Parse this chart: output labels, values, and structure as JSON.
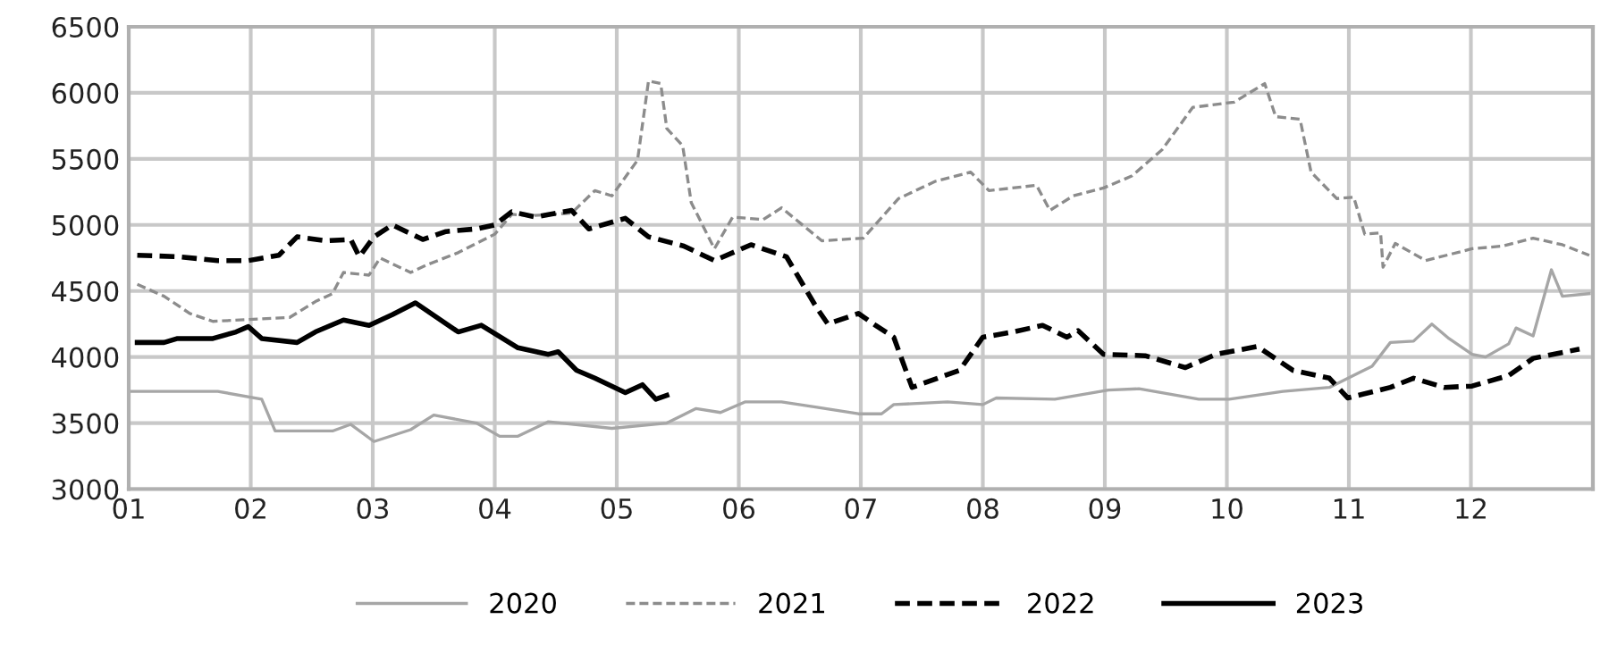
{
  "chart_data": {
    "type": "line",
    "xlim": [
      1,
      13
    ],
    "ylim": [
      3000,
      6500
    ],
    "xticks": [
      {
        "value": 1,
        "label": "01"
      },
      {
        "value": 2,
        "label": "02"
      },
      {
        "value": 3,
        "label": "03"
      },
      {
        "value": 4,
        "label": "04"
      },
      {
        "value": 5,
        "label": "05"
      },
      {
        "value": 6,
        "label": "06"
      },
      {
        "value": 7,
        "label": "07"
      },
      {
        "value": 8,
        "label": "08"
      },
      {
        "value": 9,
        "label": "09"
      },
      {
        "value": 10,
        "label": "10"
      },
      {
        "value": 11,
        "label": "11"
      },
      {
        "value": 12,
        "label": "12"
      },
      {
        "value": 13,
        "label": null
      }
    ],
    "yticks": [
      3000,
      3500,
      4000,
      4500,
      5000,
      5500,
      6000,
      6500
    ],
    "grid": true,
    "legend": "bottom",
    "marker": "none",
    "series": [
      {
        "name": "2020",
        "color": "#a6a6a6",
        "line_style": "solid",
        "x": [
          1.0,
          1.73,
          2.09,
          2.2,
          2.67,
          2.82,
          3.01,
          3.31,
          3.5,
          3.85,
          4.04,
          4.19,
          4.44,
          4.96,
          5.41,
          5.65,
          5.85,
          6.05,
          6.35,
          6.64,
          6.98,
          7.17,
          7.27,
          7.71,
          8.0,
          8.11,
          8.59,
          9.03,
          9.28,
          9.77,
          10.02,
          10.46,
          10.84,
          11.19,
          11.34,
          11.53,
          11.68,
          11.82,
          12.01,
          12.12,
          12.31,
          12.37,
          12.51,
          12.66,
          12.75,
          12.97
        ],
        "values": [
          3740,
          3740,
          3680,
          3440,
          3440,
          3490,
          3360,
          3450,
          3560,
          3500,
          3400,
          3400,
          3510,
          3460,
          3500,
          3610,
          3580,
          3660,
          3660,
          3620,
          3570,
          3570,
          3640,
          3660,
          3640,
          3690,
          3680,
          3750,
          3760,
          3680,
          3680,
          3740,
          3770,
          3930,
          4110,
          4120,
          4250,
          4140,
          4020,
          4000,
          4100,
          4220,
          4160,
          4660,
          4460,
          4480
        ]
      },
      {
        "name": "2021",
        "color": "#8c8c8c",
        "line_style": "dashed",
        "x": [
          1.07,
          1.29,
          1.5,
          1.69,
          2.32,
          2.53,
          2.67,
          2.76,
          2.97,
          3.06,
          3.31,
          3.45,
          3.7,
          4.0,
          4.14,
          4.3,
          4.63,
          4.82,
          4.96,
          5.17,
          5.26,
          5.36,
          5.41,
          5.54,
          5.61,
          5.8,
          5.95,
          6.2,
          6.35,
          6.68,
          7.02,
          7.31,
          7.61,
          7.9,
          8.05,
          8.44,
          8.55,
          8.74,
          8.99,
          9.22,
          9.47,
          9.72,
          10.06,
          10.31,
          10.4,
          10.6,
          10.69,
          10.9,
          11.04,
          11.13,
          11.26,
          11.28,
          11.38,
          11.63,
          12.01,
          12.26,
          12.51,
          12.75,
          12.97
        ],
        "values": [
          4550,
          4460,
          4330,
          4270,
          4300,
          4420,
          4480,
          4640,
          4620,
          4750,
          4640,
          4700,
          4790,
          4930,
          5080,
          5070,
          5090,
          5260,
          5220,
          5490,
          6090,
          6070,
          5730,
          5600,
          5170,
          4820,
          5060,
          5040,
          5130,
          4880,
          4900,
          5200,
          5330,
          5400,
          5260,
          5300,
          5110,
          5220,
          5280,
          5370,
          5570,
          5890,
          5930,
          6070,
          5820,
          5800,
          5400,
          5200,
          5210,
          4930,
          4940,
          4680,
          4860,
          4730,
          4820,
          4840,
          4900,
          4850,
          4770
        ]
      },
      {
        "name": "2022",
        "color": "#000000",
        "line_style": "dashed",
        "x": [
          1.07,
          1.4,
          1.73,
          1.98,
          2.23,
          2.38,
          2.62,
          2.82,
          2.89,
          3.01,
          3.16,
          3.41,
          3.6,
          3.85,
          4.0,
          4.14,
          4.33,
          4.63,
          4.77,
          5.07,
          5.26,
          5.55,
          5.8,
          6.1,
          6.39,
          6.64,
          6.73,
          6.98,
          7.12,
          7.27,
          7.42,
          7.81,
          8.0,
          8.25,
          8.49,
          8.69,
          8.78,
          8.99,
          9.33,
          9.66,
          9.91,
          10.25,
          10.54,
          10.84,
          10.99,
          11.34,
          11.53,
          11.78,
          12.01,
          12.31,
          12.51,
          12.89
        ],
        "values": [
          4770,
          4760,
          4730,
          4730,
          4770,
          4910,
          4880,
          4890,
          4760,
          4910,
          5000,
          4890,
          4950,
          4970,
          5000,
          5100,
          5060,
          5110,
          4970,
          5050,
          4910,
          4840,
          4730,
          4850,
          4760,
          4370,
          4250,
          4330,
          4240,
          4150,
          3770,
          3900,
          4150,
          4190,
          4240,
          4150,
          4200,
          4020,
          4010,
          3920,
          4020,
          4080,
          3900,
          3840,
          3690,
          3770,
          3840,
          3770,
          3780,
          3860,
          3990,
          4060
        ]
      },
      {
        "name": "2023",
        "color": "#000000",
        "line_style": "solid",
        "x": [
          1.07,
          1.29,
          1.4,
          1.69,
          1.88,
          1.98,
          2.09,
          2.38,
          2.53,
          2.76,
          2.97,
          3.16,
          3.35,
          3.7,
          3.89,
          4.19,
          4.44,
          4.52,
          4.67,
          4.82,
          5.07,
          5.21,
          5.32,
          5.41
        ],
        "values": [
          4110,
          4110,
          4140,
          4140,
          4190,
          4230,
          4140,
          4110,
          4190,
          4280,
          4240,
          4320,
          4410,
          4190,
          4240,
          4070,
          4020,
          4040,
          3900,
          3840,
          3730,
          3790,
          3680,
          3710
        ]
      }
    ]
  }
}
